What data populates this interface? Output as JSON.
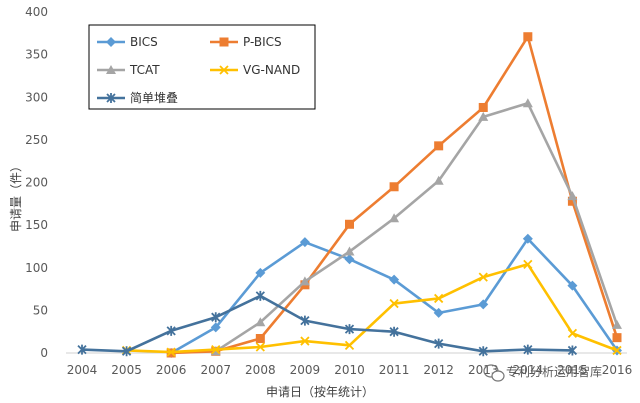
{
  "chart_data": {
    "type": "line",
    "xlabel": "申请日（按年统计）",
    "ylabel": "申请量（件）",
    "x": [
      2004,
      2005,
      2006,
      2007,
      2008,
      2009,
      2010,
      2011,
      2012,
      2013,
      2014,
      2015,
      2016
    ],
    "xlim": [
      2004,
      2016
    ],
    "ylim": [
      0,
      400
    ],
    "yticks": [
      0,
      50,
      100,
      150,
      200,
      250,
      300,
      350,
      400
    ],
    "legend": "top-left",
    "grid": false,
    "series": [
      {
        "name": "BICS",
        "color": "#5b9bd5",
        "marker": "diamond",
        "values": [
          null,
          null,
          0,
          30,
          94,
          130,
          110,
          86,
          47,
          57,
          134,
          79,
          3
        ]
      },
      {
        "name": "P-BICS",
        "color": "#ed7d31",
        "marker": "square",
        "values": [
          null,
          null,
          0,
          2,
          17,
          80,
          151,
          195,
          243,
          288,
          371,
          178,
          18
        ]
      },
      {
        "name": "TCAT",
        "color": "#a5a5a5",
        "marker": "triangle",
        "values": [
          null,
          null,
          null,
          2,
          36,
          84,
          119,
          158,
          202,
          277,
          293,
          184,
          33
        ]
      },
      {
        "name": "VG-NAND",
        "color": "#ffc000",
        "marker": "x",
        "values": [
          null,
          3,
          1,
          4,
          7,
          14,
          9,
          58,
          64,
          89,
          104,
          23,
          3
        ]
      },
      {
        "name": "简单堆叠",
        "color": "#44729c",
        "marker": "star",
        "values": [
          4,
          2,
          26,
          42,
          67,
          38,
          28,
          25,
          11,
          2,
          4,
          3,
          null
        ]
      }
    ]
  },
  "watermark": {
    "text": "专利分析运用智库"
  }
}
